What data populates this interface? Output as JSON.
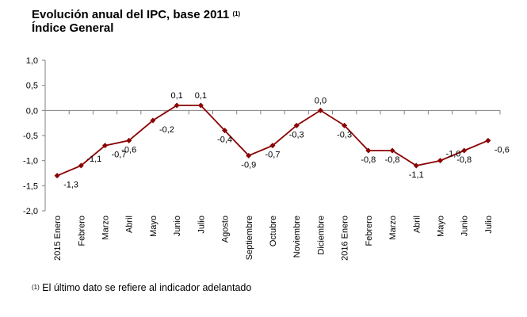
{
  "title": "Evolución anual del IPC, base 2011",
  "title_note": "(1)",
  "subtitle": "Índice General",
  "footnote_mark": "(1)",
  "footnote_text": "El último dato se refiere al indicador adelantado",
  "colors": {
    "series": "#8B0000",
    "axis": "#808080"
  },
  "chart_data": {
    "type": "line",
    "title": "Evolución anual del IPC, base 2011",
    "subtitle": "Índice General",
    "xlabel": "",
    "ylabel": "",
    "ylim": [
      -2.0,
      1.0
    ],
    "ytick_step": 0.5,
    "y_ticks": [
      "1,0",
      "0,5",
      "0,0",
      "-0,5",
      "-1,0",
      "-1,5",
      "-2,0"
    ],
    "grid": false,
    "legend": "none",
    "categories": [
      "2015 Enero",
      "Febrero",
      "Marzo",
      "Abril",
      "Mayo",
      "Junio",
      "Julio",
      "Agosto",
      "Septiembre",
      "Octubre",
      "Noviembre",
      "Diciembre",
      "2016 Enero",
      "Febrero",
      "Marzo",
      "Abril",
      "Mayo",
      "Junio",
      "Julio"
    ],
    "values": [
      -1.3,
      -1.1,
      -0.7,
      -0.6,
      -0.2,
      0.1,
      0.1,
      -0.4,
      -0.9,
      -0.7,
      -0.3,
      0.0,
      -0.3,
      -0.8,
      -0.8,
      -1.1,
      -1.0,
      -0.8,
      -0.6
    ],
    "data_labels": [
      "-1,3",
      "-1,1",
      "-0,7",
      "-0,6",
      "-0,2",
      "0,1",
      "0,1",
      "-0,4",
      "-0,9",
      "-0,7",
      "-0,3",
      "0,0",
      "-0,3",
      "-0,8",
      "-0,8",
      "-1,1",
      "-1,0",
      "-0,8",
      "-0,6"
    ],
    "label_positions": [
      "below-right",
      "right",
      "below-right",
      "below",
      "below-right",
      "above",
      "above",
      "below",
      "below",
      "below",
      "below",
      "above",
      "below",
      "below",
      "below",
      "below",
      "right",
      "below",
      "below-right"
    ]
  }
}
